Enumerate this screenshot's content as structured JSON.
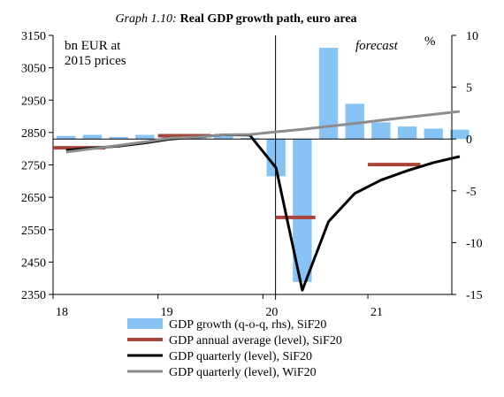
{
  "chart_data": {
    "type": "bar+line",
    "title_prefix": "Graph 1.10:",
    "title_main": "Real GDP growth path, euro area",
    "left_axis_label_line1": "bn EUR at",
    "left_axis_label_line2": "2015 prices",
    "right_axis_label": "%",
    "forecast_label": "forecast",
    "x_ticks": [
      "18",
      "19",
      "20",
      "21"
    ],
    "x_range": [
      2018.0,
      2021.8
    ],
    "forecast_start_x": 2020.12,
    "left_axis": {
      "ylim": [
        2350,
        3150
      ],
      "ticks": [
        2350,
        2450,
        2550,
        2650,
        2750,
        2850,
        2950,
        3050,
        3150
      ]
    },
    "right_axis": {
      "ylim": [
        -15,
        10
      ],
      "ticks": [
        -15,
        -10,
        -5,
        0,
        5,
        10
      ]
    },
    "series": [
      {
        "name": "GDP growth (q-o-q, rhs), SiF20",
        "kind": "bar",
        "axis": "right",
        "color": "#87c3f5",
        "x": [
          2018.0,
          2018.25,
          2018.5,
          2018.75,
          2019.0,
          2019.25,
          2019.5,
          2019.75,
          2020.0,
          2020.25,
          2020.5,
          2020.75,
          2021.0,
          2021.25,
          2021.5,
          2021.75
        ],
        "values": [
          0.3,
          0.4,
          0.2,
          0.4,
          0.4,
          0.2,
          0.3,
          0.1,
          -3.6,
          -13.8,
          8.8,
          3.4,
          1.6,
          1.2,
          1.0,
          0.9
        ]
      },
      {
        "name": "GDP annual average (level), SiF20",
        "kind": "segments",
        "axis": "left",
        "color": "#a8443a",
        "segments": [
          {
            "x": [
              2018.0,
              2018.5
            ],
            "y": 2803
          },
          {
            "x": [
              2019.0,
              2019.5
            ],
            "y": 2840
          },
          {
            "x": [
              2020.12,
              2020.5
            ],
            "y": 2588
          },
          {
            "x": [
              2021.0,
              2021.5
            ],
            "y": 2751
          }
        ]
      },
      {
        "name": "GDP quarterly (level), SiF20",
        "kind": "line",
        "axis": "left",
        "color": "#000000",
        "x": [
          2018.0,
          2018.25,
          2018.5,
          2018.75,
          2019.0,
          2019.25,
          2019.5,
          2019.75,
          2020.0,
          2020.25,
          2020.5,
          2020.75,
          2021.0,
          2021.25,
          2021.5,
          2021.75
        ],
        "values": [
          2795,
          2802,
          2808,
          2818,
          2830,
          2836,
          2843,
          2842,
          2741,
          2363,
          2575,
          2662,
          2703,
          2732,
          2757,
          2776
        ]
      },
      {
        "name": "GDP quarterly (level), WiF20",
        "kind": "line",
        "axis": "left",
        "color": "#8c8c8c",
        "x": [
          2018.0,
          2018.25,
          2018.5,
          2018.75,
          2019.0,
          2019.25,
          2019.5,
          2019.75,
          2020.0,
          2020.25,
          2020.5,
          2020.75,
          2021.0,
          2021.25,
          2021.5,
          2021.75
        ],
        "values": [
          2790,
          2800,
          2810,
          2821,
          2833,
          2836,
          2843,
          2844,
          2852,
          2860,
          2869,
          2878,
          2888,
          2897,
          2906,
          2915
        ]
      }
    ]
  }
}
